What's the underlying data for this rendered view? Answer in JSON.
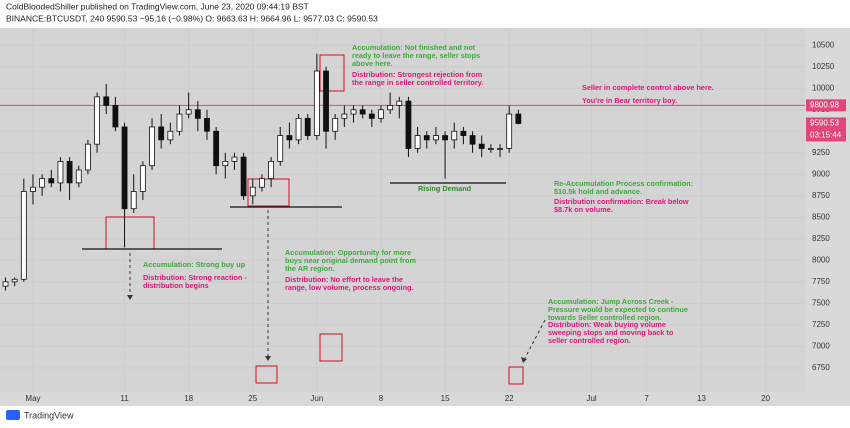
{
  "chart_data": {
    "type": "candlestick",
    "title": "ColdBloodedShiller published on TradingView.com, June 23, 2020 09:44:19 BST",
    "subtitle": "BINANCE:BTCUSDT, 240  9590.53  −95.16 (−0.98%)  O: 9663.63  H: 9664.96  L: 9577.03  C: 9590.53",
    "x": [
      -3,
      -2,
      -1,
      0,
      1,
      2,
      3,
      4,
      5,
      6,
      7,
      8,
      9,
      10,
      11,
      12,
      13,
      14,
      15,
      16,
      17,
      18,
      19,
      20,
      21,
      22,
      23,
      24,
      25,
      26,
      27,
      28,
      29,
      30,
      31,
      32,
      33,
      34,
      35,
      36,
      37,
      38,
      39,
      40,
      41,
      42,
      43,
      44,
      45,
      46,
      47,
      48,
      49,
      50,
      51,
      52,
      53
    ],
    "open": [
      7700,
      7750,
      7780,
      8800,
      8850,
      8950,
      8900,
      9150,
      8900,
      9050,
      9350,
      9900,
      9800,
      9550,
      8600,
      8800,
      9100,
      9550,
      9400,
      9500,
      9700,
      9750,
      9650,
      9500,
      9100,
      9150,
      9200,
      8750,
      8850,
      8950,
      9150,
      9450,
      9400,
      9650,
      9450,
      10200,
      9500,
      9650,
      9700,
      9750,
      9700,
      9650,
      9750,
      9800,
      9850,
      9300,
      9450,
      9400,
      9450,
      9400,
      9500,
      9450,
      9350,
      9300,
      9300,
      9300,
      9700
    ],
    "high": [
      7800,
      7800,
      8950,
      9000,
      9000,
      9050,
      9200,
      9200,
      9100,
      9400,
      9950,
      10050,
      9900,
      9600,
      9000,
      9150,
      9650,
      9700,
      9600,
      9800,
      9950,
      9850,
      9750,
      9550,
      9250,
      9250,
      9250,
      8950,
      9000,
      9200,
      9550,
      9600,
      9700,
      9700,
      10400,
      10250,
      9700,
      9800,
      9800,
      9800,
      9750,
      9800,
      9950,
      9900,
      9900,
      9550,
      9500,
      9550,
      9500,
      9600,
      9550,
      9500,
      9450,
      9350,
      9350,
      9800,
      9750
    ],
    "low": [
      7650,
      7700,
      7750,
      8650,
      8750,
      8850,
      8800,
      8700,
      8850,
      9000,
      9250,
      9700,
      9500,
      8150,
      8550,
      8700,
      9050,
      9300,
      9350,
      9450,
      9650,
      9500,
      9400,
      9000,
      8950,
      9050,
      8700,
      8650,
      8800,
      8850,
      9100,
      9300,
      9350,
      9400,
      9400,
      9300,
      9400,
      9550,
      9600,
      9650,
      9550,
      9600,
      9700,
      9650,
      9200,
      9250,
      9300,
      9350,
      8950,
      9300,
      9350,
      9250,
      9200,
      9250,
      9200,
      9250,
      9580
    ],
    "close": [
      7750,
      7780,
      8800,
      8850,
      8950,
      8900,
      9150,
      8900,
      9050,
      9350,
      9900,
      9800,
      9550,
      8600,
      8800,
      9100,
      9550,
      9400,
      9500,
      9700,
      9750,
      9650,
      9500,
      9100,
      9150,
      9200,
      8750,
      8850,
      8950,
      9150,
      9450,
      9400,
      9650,
      9450,
      10200,
      9500,
      9650,
      9700,
      9750,
      9700,
      9650,
      9750,
      9800,
      9850,
      9300,
      9450,
      9400,
      9450,
      9400,
      9500,
      9450,
      9350,
      9300,
      9300,
      9300,
      9700,
      9590.53
    ],
    "color": "#111111",
    "xlim": [
      -3.6,
      84.3
    ],
    "xticks": [
      {
        "value": 0,
        "label": "May"
      },
      {
        "value": 10,
        "label": "11"
      },
      {
        "value": 17,
        "label": "18"
      },
      {
        "value": 24,
        "label": "25"
      },
      {
        "value": 31,
        "label": "Jun"
      },
      {
        "value": 38,
        "label": "8"
      },
      {
        "value": 45,
        "label": "15"
      },
      {
        "value": 52,
        "label": "22"
      },
      {
        "value": 61,
        "label": "Jul"
      },
      {
        "value": 67,
        "label": "7"
      },
      {
        "value": 73,
        "label": "13"
      },
      {
        "value": 80,
        "label": "20"
      }
    ],
    "ylim": [
      6470,
      10700
    ],
    "yticks": [
      6750,
      7000,
      7250,
      7500,
      7750,
      8000,
      8250,
      8500,
      8750,
      9000,
      9250,
      9500,
      9750,
      10000,
      10250,
      10500
    ],
    "price_line": {
      "value": 9800.98,
      "color": "#e0467a"
    },
    "countdown": "03:15:44",
    "annotations": [
      {
        "color": "#3daa3d",
        "lines": [
          "Accumulation: Not finished and not",
          "ready to leave the range, seller stops",
          "above here."
        ]
      },
      {
        "color": "#e0167a",
        "lines": [
          "Distribution: Strongest rejection from",
          "the range in seller controlled territory."
        ]
      },
      {
        "color": "#e0167a",
        "lines": [
          "Seller in complete control above here."
        ]
      },
      {
        "color": "#e0167a",
        "lines": [
          "You're in Bear territory boy."
        ]
      },
      {
        "color": "#2e8b2e",
        "lines": [
          "Rising Demand"
        ]
      },
      {
        "color": "#3daa3d",
        "lines": [
          "Re-Accumulation Process confirmation:",
          "$10.5k hold and advance."
        ]
      },
      {
        "color": "#e0167a",
        "lines": [
          "Distribution confirmation: Break below",
          "$8.7k on volume."
        ]
      },
      {
        "color": "#3daa3d",
        "lines": [
          "Accumulation: Strong buy up"
        ]
      },
      {
        "color": "#e0167a",
        "lines": [
          "Distribution: Strong reaction -",
          "distribution begins"
        ]
      },
      {
        "color": "#3daa3d",
        "lines": [
          "Accumulation: Opportunity for more",
          "buys near original demand point from",
          "the AR region."
        ]
      },
      {
        "color": "#e0167a",
        "lines": [
          "Distribution: No effort to leave the",
          "range, low volume, process ongoing."
        ]
      },
      {
        "color": "#3daa3d",
        "lines": [
          "Accumulation: Jump Across Creek -",
          "Pressure would be expected to continue",
          "towards Seller controlled region."
        ]
      },
      {
        "color": "#e0167a",
        "lines": [
          "Distribution: Weak buying volume",
          "sweeping stops and moving back to",
          "seller controlled region."
        ]
      }
    ],
    "brand": "TradingView"
  }
}
